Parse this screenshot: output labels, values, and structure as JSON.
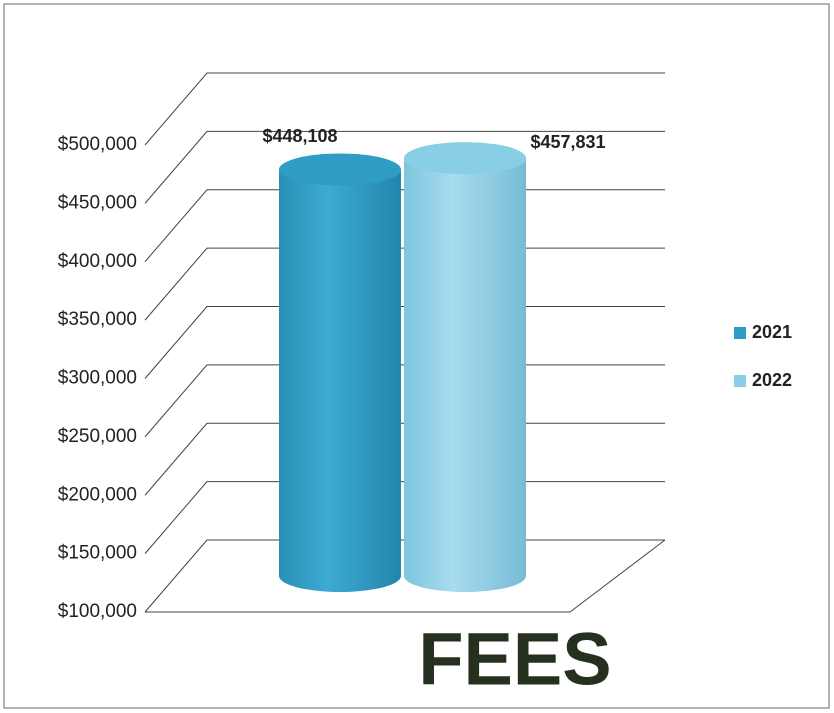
{
  "chart_data": {
    "type": "bar3d",
    "title": "FEES",
    "categories": [
      null
    ],
    "series": [
      {
        "name": "2021",
        "color": "#2e9cc4",
        "values": [
          448108
        ],
        "value_labels": [
          "$448,108"
        ]
      },
      {
        "name": "2022",
        "color": "#88cfe6",
        "values": [
          457831
        ],
        "value_labels": [
          "$457,831"
        ]
      }
    ],
    "ylim": [
      100000,
      500000
    ],
    "yticks": [
      {
        "value": 100000,
        "label": "$100,000"
      },
      {
        "value": 150000,
        "label": "$150,000"
      },
      {
        "value": 200000,
        "label": "$200,000"
      },
      {
        "value": 250000,
        "label": "$250,000"
      },
      {
        "value": 300000,
        "label": "$300,000"
      },
      {
        "value": 350000,
        "label": "$350,000"
      },
      {
        "value": 400000,
        "label": "$400,000"
      },
      {
        "value": 450000,
        "label": "$450,000"
      },
      {
        "value": 500000,
        "label": "$500,000"
      }
    ],
    "grid": true,
    "legend": "right"
  }
}
